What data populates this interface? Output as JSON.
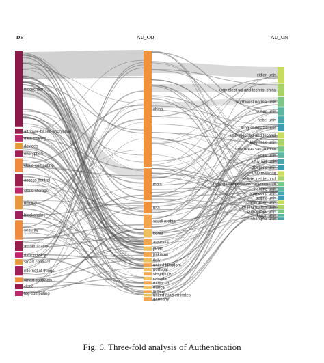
{
  "figure": {
    "caption": "Fig. 6.  Three-fold analysis of Authentication",
    "columns": [
      {
        "key": "left",
        "title": "DE"
      },
      {
        "key": "mid",
        "title": "AU_CO"
      },
      {
        "key": "right",
        "title": "AU_UN"
      }
    ]
  },
  "chart_data": {
    "type": "sankey",
    "columns": [
      "DE",
      "AU_CO",
      "AU_UN"
    ],
    "nodes": {
      "DE": [
        {
          "label": "blockchain",
          "weight": 86
        },
        {
          "label": "attribute-based encryption",
          "weight": 6
        },
        {
          "label": "data sharing",
          "weight": 7
        },
        {
          "label": "devices",
          "weight": 7
        },
        {
          "label": "encryption",
          "weight": 7
        },
        {
          "label": "cloud computing",
          "weight": 16
        },
        {
          "label": "access control",
          "weight": 14
        },
        {
          "label": "cloud storage",
          "weight": 7
        },
        {
          "label": "privacy",
          "weight": 16
        },
        {
          "label": "blockchains",
          "weight": 9
        },
        {
          "label": "security",
          "weight": 22
        },
        {
          "label": "authentication",
          "weight": 11
        },
        {
          "label": "data privacy",
          "weight": 6
        },
        {
          "label": "smart contract",
          "weight": 6
        },
        {
          "label": "internet of things",
          "weight": 11
        },
        {
          "label": "smart contracts",
          "weight": 6
        },
        {
          "label": "cloud",
          "weight": 6
        },
        {
          "label": "fog computing",
          "weight": 6
        }
      ],
      "AU_CO": [
        {
          "label": "china",
          "weight": 138
        },
        {
          "label": "india",
          "weight": 38
        },
        {
          "label": "usa",
          "weight": 14
        },
        {
          "label": "saudi arabia",
          "weight": 16
        },
        {
          "label": "korea",
          "weight": 10
        },
        {
          "label": "australia",
          "weight": 8
        },
        {
          "label": "japan",
          "weight": 5
        },
        {
          "label": "pakistan",
          "weight": 6
        },
        {
          "label": "italy",
          "weight": 5
        },
        {
          "label": "united kingdom",
          "weight": 4
        },
        {
          "label": "portugal",
          "weight": 4
        },
        {
          "label": "singapore",
          "weight": 4
        },
        {
          "label": "canada",
          "weight": 4
        },
        {
          "label": "morocco",
          "weight": 4
        },
        {
          "label": "france",
          "weight": 4
        },
        {
          "label": "finland",
          "weight": 3
        },
        {
          "label": "united arab emirates",
          "weight": 3
        },
        {
          "label": "germany",
          "weight": 4
        }
      ],
      "AU_UN": [
        {
          "label": "xidian univ",
          "weight": 18
        },
        {
          "label": "univ elect sci and technol china",
          "weight": 14
        },
        {
          "label": "northwest normal univ",
          "weight": 11
        },
        {
          "label": "wuhan univ",
          "weight": 9
        },
        {
          "label": "hebei univ",
          "weight": 8
        },
        {
          "label": "king abdulaziz univ",
          "weight": 8
        },
        {
          "label": "univ elect sci and technol",
          "weight": 7
        },
        {
          "label": "king saud univ",
          "weight": 7
        },
        {
          "label": "univ texas san antonio",
          "weight": 6
        },
        {
          "label": "anna univ",
          "weight": 6
        },
        {
          "label": "univ nati univ",
          "weight": 6
        },
        {
          "label": "zhejiang univ",
          "weight": 6
        },
        {
          "label": "univ missouri",
          "weight": 5
        },
        {
          "label": "vellore inst technol",
          "weight": 5
        },
        {
          "label": "beijing univ posts and telecommun",
          "weight": 5
        },
        {
          "label": "nanjing univ",
          "weight": 4
        },
        {
          "label": "shandong univ",
          "weight": 4
        },
        {
          "label": "beijing univ",
          "weight": 4
        },
        {
          "label": "shenzhen univ",
          "weight": 4
        },
        {
          "label": "nanjing normal univ",
          "weight": 4
        },
        {
          "label": "guangzhou univ",
          "weight": 4
        },
        {
          "label": "tianjin univ",
          "weight": 3
        },
        {
          "label": "shanghai univ",
          "weight": 3
        }
      ]
    }
  }
}
